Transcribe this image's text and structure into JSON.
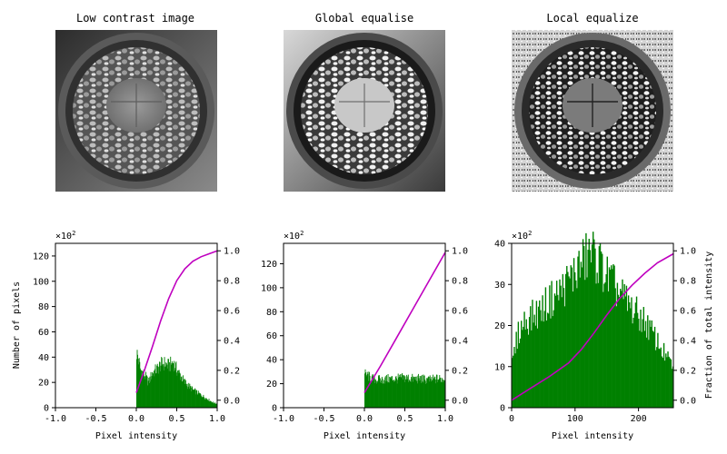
{
  "titles": [
    "Low contrast image",
    "Global equalise",
    "Local equalize"
  ],
  "xlabel": "Pixel intensity",
  "ylabel": "Number of pixels",
  "ylabel2": "Fraction of total intensity",
  "multiplier": "×10",
  "multiplier_exp": "2",
  "colors": {
    "hist": "#008000",
    "cdf": "#bf00bf",
    "pot": "#2a2a2a",
    "stone": "#cfcfcf"
  },
  "chart_data": [
    {
      "type": "bar",
      "title": "Low contrast image",
      "xlabel": "Pixel intensity",
      "ylabel": "Number of pixels",
      "ylabel2": "",
      "multiplier": "×10^2",
      "xlim": [
        -1.0,
        1.0
      ],
      "ylim": [
        0,
        130
      ],
      "y2lim": [
        -0.05,
        1.05
      ],
      "xticks": [
        -1.0,
        -0.5,
        0.0,
        0.5,
        1.0
      ],
      "xticklabels": [
        "-1.0",
        "-0.5",
        "0.0",
        "0.5",
        "1.0"
      ],
      "yticks": [
        0,
        20,
        40,
        60,
        80,
        100,
        120
      ],
      "y2ticks": [
        0.0,
        0.2,
        0.4,
        0.6,
        0.8,
        1.0
      ],
      "y2ticklabels": [
        "0.0",
        "0.2",
        "0.4",
        "0.6",
        "0.8",
        "1.0"
      ],
      "hist_envelope": [
        [
          0.0,
          44
        ],
        [
          0.02,
          40
        ],
        [
          0.05,
          30
        ],
        [
          0.1,
          26
        ],
        [
          0.15,
          20
        ],
        [
          0.2,
          28
        ],
        [
          0.25,
          30
        ],
        [
          0.3,
          34
        ],
        [
          0.35,
          35
        ],
        [
          0.4,
          33
        ],
        [
          0.45,
          36
        ],
        [
          0.5,
          30
        ],
        [
          0.55,
          25
        ],
        [
          0.6,
          20
        ],
        [
          0.7,
          14
        ],
        [
          0.8,
          10
        ],
        [
          0.9,
          6
        ],
        [
          0.95,
          4
        ],
        [
          1.0,
          3
        ]
      ],
      "cdf": [
        [
          0.0,
          0.05
        ],
        [
          0.1,
          0.2
        ],
        [
          0.2,
          0.36
        ],
        [
          0.3,
          0.53
        ],
        [
          0.4,
          0.68
        ],
        [
          0.5,
          0.8
        ],
        [
          0.6,
          0.88
        ],
        [
          0.7,
          0.93
        ],
        [
          0.8,
          0.96
        ],
        [
          0.9,
          0.98
        ],
        [
          1.0,
          1.0
        ]
      ]
    },
    {
      "type": "bar",
      "title": "Global equalise",
      "xlabel": "Pixel intensity",
      "ylabel": "",
      "ylabel2": "",
      "multiplier": "×10^2",
      "xlim": [
        -1.0,
        1.0
      ],
      "ylim": [
        0,
        137
      ],
      "y2lim": [
        -0.05,
        1.05
      ],
      "xticks": [
        -1.0,
        -0.5,
        0.0,
        0.5,
        1.0
      ],
      "xticklabels": [
        "-1.0",
        "-0.5",
        "0.0",
        "0.5",
        "1.0"
      ],
      "yticks": [
        0,
        20,
        40,
        60,
        80,
        100,
        120
      ],
      "y2ticks": [
        0.0,
        0.2,
        0.4,
        0.6,
        0.8,
        1.0
      ],
      "y2ticklabels": [
        "0.0",
        "0.2",
        "0.4",
        "0.6",
        "0.8",
        "1.0"
      ],
      "hist_envelope": [
        [
          0.0,
          28
        ],
        [
          0.1,
          24
        ],
        [
          0.2,
          23
        ],
        [
          0.3,
          24
        ],
        [
          0.4,
          24
        ],
        [
          0.5,
          25
        ],
        [
          0.6,
          24
        ],
        [
          0.7,
          24
        ],
        [
          0.8,
          23
        ],
        [
          0.9,
          24
        ],
        [
          1.0,
          24
        ]
      ],
      "cdf": [
        [
          0.0,
          0.05
        ],
        [
          0.2,
          0.23
        ],
        [
          0.4,
          0.42
        ],
        [
          0.6,
          0.61
        ],
        [
          0.8,
          0.8
        ],
        [
          1.0,
          0.99
        ]
      ]
    },
    {
      "type": "bar",
      "title": "Local equalize",
      "xlabel": "Pixel intensity",
      "ylabel": "",
      "ylabel2": "Fraction of total intensity",
      "multiplier": "×10^2",
      "xlim": [
        0,
        255
      ],
      "ylim": [
        0,
        40
      ],
      "y2lim": [
        -0.05,
        1.05
      ],
      "xticks": [
        0,
        100,
        200
      ],
      "xticklabels": [
        "0",
        "100",
        "200"
      ],
      "yticks": [
        0,
        10,
        20,
        30,
        40
      ],
      "y2ticks": [
        0.0,
        0.2,
        0.4,
        0.6,
        0.8,
        1.0
      ],
      "y2ticklabels": [
        "0.0",
        "0.2",
        "0.4",
        "0.6",
        "0.8",
        "1.0"
      ],
      "hist_envelope": [
        [
          0,
          10
        ],
        [
          10,
          18
        ],
        [
          20,
          21
        ],
        [
          40,
          23
        ],
        [
          60,
          26
        ],
        [
          80,
          29
        ],
        [
          100,
          33
        ],
        [
          115,
          36
        ],
        [
          125,
          38
        ],
        [
          135,
          36
        ],
        [
          150,
          32
        ],
        [
          170,
          28
        ],
        [
          190,
          24
        ],
        [
          210,
          21
        ],
        [
          230,
          16
        ],
        [
          245,
          12
        ],
        [
          255,
          10
        ]
      ],
      "cdf": [
        [
          0,
          0.0
        ],
        [
          30,
          0.08
        ],
        [
          60,
          0.16
        ],
        [
          90,
          0.25
        ],
        [
          110,
          0.34
        ],
        [
          130,
          0.45
        ],
        [
          150,
          0.57
        ],
        [
          170,
          0.68
        ],
        [
          190,
          0.77
        ],
        [
          210,
          0.85
        ],
        [
          230,
          0.92
        ],
        [
          255,
          0.98
        ]
      ]
    }
  ]
}
